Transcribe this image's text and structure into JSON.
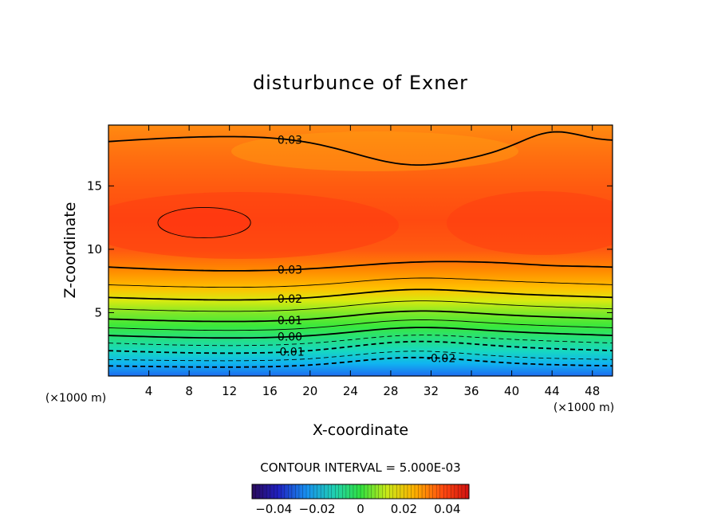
{
  "chart_data": {
    "type": "contour",
    "title": "disturbunce of Exner",
    "xlabel": "X-coordinate",
    "ylabel": "Z-coordinate",
    "x_unit": "(×1000 m)",
    "y_unit": "(×1000 m)",
    "xlim": [
      0,
      50
    ],
    "ylim": [
      0,
      19.8
    ],
    "xticks": [
      4,
      8,
      12,
      16,
      20,
      24,
      28,
      32,
      36,
      40,
      44,
      48
    ],
    "yticks": [
      5,
      10,
      15
    ],
    "contour_interval_text": "CONTOUR INTERVAL = 5.000E-03",
    "colorbar": {
      "range": [
        -0.05,
        0.05
      ],
      "ticks": [
        -0.04,
        -0.02,
        0,
        0.02,
        0.04
      ],
      "tick_labels": [
        "−0.04",
        "−0.02",
        "0",
        "0.02",
        "0.04"
      ]
    },
    "levels": [
      {
        "value": 0.03,
        "text": "0.03",
        "style": "thick",
        "label_x": 18,
        "base_z": 18.5,
        "amp": [
          0.4,
          -1.6,
          1.1
        ]
      },
      {
        "value": 0.03,
        "text": "0.03",
        "style": "thick",
        "label_x": 18,
        "base_z": 8.6,
        "amp": [
          -0.3,
          0.2,
          -0.1
        ]
      },
      {
        "value": 0.025,
        "text": "",
        "style": "thin",
        "label_x": null,
        "base_z": 7.2,
        "amp": [
          -0.2,
          0.4,
          0.0
        ]
      },
      {
        "value": 0.02,
        "text": "0.02",
        "style": "thick",
        "label_x": 18,
        "base_z": 6.2,
        "amp": [
          -0.2,
          0.5,
          0.0
        ]
      },
      {
        "value": 0.015,
        "text": "",
        "style": "thin",
        "label_x": null,
        "base_z": 5.3,
        "amp": [
          -0.2,
          0.5,
          0.0
        ]
      },
      {
        "value": 0.01,
        "text": "0.01",
        "style": "thick",
        "label_x": 18,
        "base_z": 4.5,
        "amp": [
          -0.2,
          0.5,
          0.0
        ]
      },
      {
        "value": 0.005,
        "text": "",
        "style": "thin",
        "label_x": null,
        "base_z": 3.8,
        "amp": [
          -0.2,
          0.5,
          0.0
        ]
      },
      {
        "value": 0.0,
        "text": "0.00",
        "style": "thick",
        "label_x": 18,
        "base_z": 3.2,
        "amp": [
          -0.2,
          0.5,
          0.0
        ]
      },
      {
        "value": -0.005,
        "text": "",
        "style": "dash",
        "label_x": null,
        "base_z": 2.6,
        "amp": [
          -0.2,
          0.5,
          0.0
        ]
      },
      {
        "value": -0.01,
        "text": "-0.01",
        "style": "dashthick",
        "label_x": 18,
        "base_z": 2.0,
        "amp": [
          -0.2,
          0.6,
          0.0
        ]
      },
      {
        "value": -0.015,
        "text": "",
        "style": "dash",
        "label_x": null,
        "base_z": 1.3,
        "amp": [
          -0.1,
          0.6,
          0.0
        ]
      },
      {
        "value": -0.02,
        "text": "-0.02",
        "style": "dashthick",
        "label_x": 33,
        "base_z": 0.8,
        "amp": [
          -0.1,
          0.6,
          0.0
        ]
      }
    ],
    "closed_contours": [
      {
        "value": 0.035,
        "text": "",
        "cx": 9.5,
        "cz": 12.1,
        "rx": 4.6,
        "rz": 1.2
      }
    ]
  }
}
